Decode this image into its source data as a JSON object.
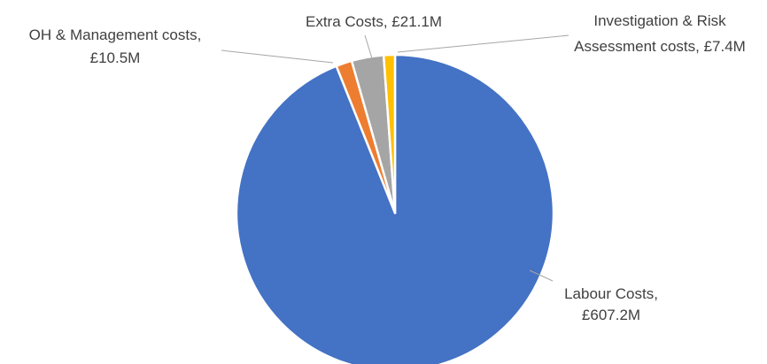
{
  "chart_data": {
    "type": "pie",
    "title": "",
    "start_angle_deg": 0,
    "direction": "clockwise",
    "slices": [
      {
        "name": "Labour Costs",
        "value": 607.2,
        "value_label": "£607.2M",
        "color": "#4472C4",
        "label_lines": [
          "Labour Costs,",
          "£607.2M"
        ]
      },
      {
        "name": "OH & Management costs",
        "value": 10.5,
        "value_label": "£10.5M",
        "color": "#ED7D31",
        "label_lines": [
          "OH & Management costs,",
          "£10.5M"
        ]
      },
      {
        "name": "Extra Costs",
        "value": 21.1,
        "value_label": "£21.1M",
        "color": "#A5A5A5",
        "label_lines": [
          "Extra Costs, £21.1M"
        ]
      },
      {
        "name": "Investigation & Risk Assessment costs",
        "value": 7.4,
        "value_label": "£7.4M",
        "color": "#FFC000",
        "label_lines": [
          "Investigation & Risk",
          "Assessment costs, £7.4M"
        ]
      }
    ],
    "legend": "none",
    "data_labels": "outside with leader lines"
  }
}
